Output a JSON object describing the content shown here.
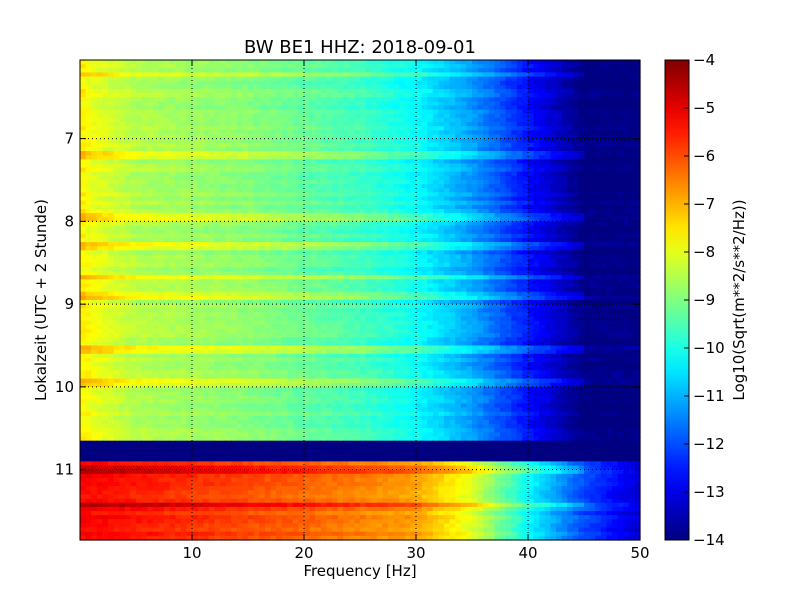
{
  "chart_data": {
    "type": "heatmap",
    "title": "BW BE1 HHZ: 2018-09-01",
    "xlabel": "Frequency [Hz]",
    "ylabel": "Lokalzeit (UTC + 2 Stunde)",
    "colorbar_label": "Log10(Sqrt(m**2/s**2/Hz))",
    "xlim": [
      0,
      50
    ],
    "ylim": [
      6.05,
      11.85
    ],
    "y_inverted": true,
    "x_ticks": [
      10,
      20,
      30,
      40,
      50
    ],
    "x_tick_labels": [
      "10",
      "20",
      "30",
      "40",
      "50"
    ],
    "y_ticks": [
      7,
      8,
      9,
      10,
      11
    ],
    "y_tick_labels": [
      "7",
      "8",
      "9",
      "10",
      "11"
    ],
    "colorbar_range": [
      -14,
      -4
    ],
    "colorbar_ticks": [
      -4,
      -5,
      -6,
      -7,
      -8,
      -9,
      -10,
      -11,
      -12,
      -13,
      -14
    ],
    "colorbar_tick_labels": [
      "−4",
      "−5",
      "−6",
      "−7",
      "−8",
      "−9",
      "−10",
      "−11",
      "−12",
      "−13",
      "−14"
    ],
    "colormap": "jet",
    "grid": true,
    "grid_style": "dotted",
    "data_gap": {
      "y_start": 10.67,
      "y_end": 10.92,
      "value": -14
    },
    "regimes": [
      {
        "y_start": 6.05,
        "y_end": 10.67,
        "profile": [
          [
            0,
            -7.6
          ],
          [
            1,
            -7.9
          ],
          [
            5,
            -8.5
          ],
          [
            15,
            -8.9
          ],
          [
            25,
            -9.6
          ],
          [
            30,
            -10.2
          ],
          [
            35,
            -11.2
          ],
          [
            40,
            -12.6
          ],
          [
            45,
            -14
          ],
          [
            50,
            -14
          ]
        ]
      },
      {
        "y_start": 10.92,
        "y_end": 11.85,
        "profile": [
          [
            0,
            -5.2
          ],
          [
            10,
            -5.7
          ],
          [
            20,
            -6.2
          ],
          [
            30,
            -6.8
          ],
          [
            35,
            -8.0
          ],
          [
            40,
            -10.2
          ],
          [
            45,
            -12.0
          ],
          [
            50,
            -13.2
          ]
        ]
      }
    ],
    "bright_lines": [
      6.22,
      7.2,
      7.95,
      8.3,
      8.67,
      8.9,
      9.55,
      9.95,
      11.0,
      11.42
    ]
  }
}
